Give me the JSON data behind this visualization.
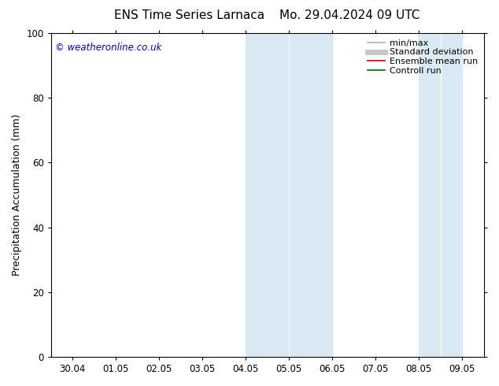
{
  "title_left": "ENS Time Series Larnaca",
  "title_right": "Mo. 29.04.2024 09 UTC",
  "ylabel": "Precipitation Accumulation (mm)",
  "watermark": "© weatheronline.co.uk",
  "ylim": [
    0,
    100
  ],
  "yticks": [
    0,
    20,
    40,
    60,
    80,
    100
  ],
  "xtick_labels": [
    "30.04",
    "01.05",
    "02.05",
    "03.05",
    "04.05",
    "05.05",
    "06.05",
    "07.05",
    "08.05",
    "09.05"
  ],
  "xtick_positions": [
    0,
    1,
    2,
    3,
    4,
    5,
    6,
    7,
    8,
    9
  ],
  "shade_bands": [
    {
      "xstart": 4.0,
      "xend": 5.0,
      "color": "#daeaf5"
    },
    {
      "xstart": 5.0,
      "xend": 6.0,
      "color": "#daeaf5"
    },
    {
      "xstart": 8.0,
      "xend": 8.5,
      "color": "#daeaf5"
    },
    {
      "xstart": 8.5,
      "xend": 9.0,
      "color": "#daeaf5"
    }
  ],
  "legend_items": [
    {
      "label": "min/max",
      "color": "#b0b0b0",
      "lw": 1.2,
      "style": "solid"
    },
    {
      "label": "Standard deviation",
      "color": "#c8c8c8",
      "lw": 5,
      "style": "solid"
    },
    {
      "label": "Ensemble mean run",
      "color": "#cc0000",
      "lw": 1.2,
      "style": "solid"
    },
    {
      "label": "Controll run",
      "color": "#006600",
      "lw": 1.2,
      "style": "solid"
    }
  ],
  "watermark_color": "#0000cc",
  "background_color": "#ffffff",
  "title_fontsize": 11,
  "tick_label_fontsize": 8.5,
  "ylabel_fontsize": 9,
  "legend_fontsize": 8,
  "xlim_left": -0.5,
  "xlim_right": 9.5
}
